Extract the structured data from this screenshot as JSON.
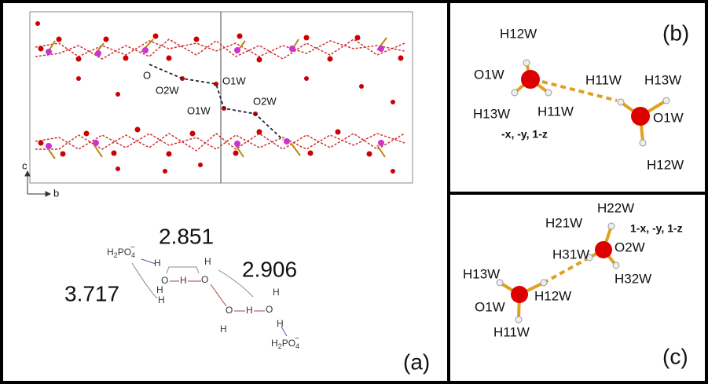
{
  "panels": {
    "a": {
      "label": "(a)",
      "crystal_labels": [
        "O",
        "O2W",
        "O1W",
        "O1W",
        "O2W"
      ],
      "axes": [
        "c",
        "b"
      ],
      "distances": [
        "2.851",
        "3.717",
        "2.906"
      ],
      "atoms": [
        "H",
        "O",
        "H",
        "O",
        "H",
        "H",
        "H",
        "O",
        "H",
        "O",
        "H",
        "H",
        "H"
      ],
      "anion_top": [
        "H",
        "2",
        "PO",
        "4",
        "−"
      ],
      "anion_bottom": [
        "H",
        "2",
        "PO",
        "4",
        "−"
      ]
    },
    "b": {
      "label": "(b)",
      "atoms": [
        "H12W",
        "O1W",
        "H13W",
        "H11W",
        "H11W",
        "H13W",
        "O1W",
        "H12W"
      ],
      "symmetry": "-x, -y, 1-z"
    },
    "c": {
      "label": "(c)",
      "atoms": [
        "H22W",
        "H21W",
        "H31W",
        "O2W",
        "H32W",
        "H13W",
        "H12W",
        "O1W",
        "H11W"
      ],
      "symmetry": "1-x, -y, 1-z"
    }
  }
}
